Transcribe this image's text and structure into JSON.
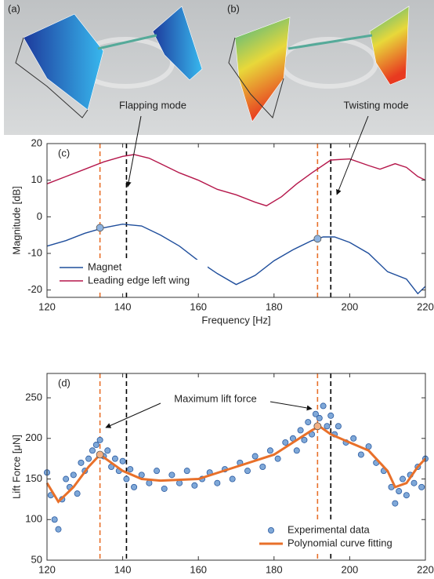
{
  "photo": {
    "labels": [
      "(a)",
      "(b)"
    ]
  },
  "chart_data": [
    {
      "type": "line",
      "panel": "(c)",
      "x_label": "Frequency [Hz]",
      "y_label": "Magnitude [dB]",
      "annotations": [
        "Flapping mode",
        "Twisting mode"
      ],
      "xlim": [
        120,
        220
      ],
      "ylim": [
        -22,
        20
      ],
      "xticks": [
        120,
        140,
        160,
        180,
        200,
        220
      ],
      "yticks": [
        -20,
        -10,
        0,
        10,
        20
      ],
      "legend": "lower left",
      "vlines": {
        "x": [
          134,
          141,
          191.5,
          195
        ],
        "colors": [
          "#e8702a",
          "#000000",
          "#e8702a",
          "#000000"
        ]
      },
      "highlights": {
        "x": [
          134,
          191.5
        ],
        "values": [
          -3,
          -6
        ],
        "color": "#8fb4e0"
      },
      "series": [
        {
          "name": "Magnet",
          "color": "#1f4e9c",
          "kind": "line",
          "x": [
            120,
            125,
            130,
            135,
            140,
            145,
            150,
            155,
            160,
            165,
            170,
            175,
            180,
            185,
            190,
            193,
            196,
            200,
            205,
            210,
            215,
            218,
            220
          ],
          "values": [
            -8,
            -6.5,
            -4.5,
            -3,
            -2,
            -2.5,
            -5,
            -8,
            -12,
            -15.5,
            -18.5,
            -16,
            -12,
            -9,
            -6.5,
            -5.5,
            -5.5,
            -7,
            -10,
            -15,
            -17,
            -21,
            -19
          ]
        },
        {
          "name": "Leading edge left wing",
          "color": "#b5174b",
          "kind": "line",
          "x": [
            120,
            125,
            130,
            135,
            140,
            143,
            147,
            150,
            155,
            160,
            165,
            170,
            175,
            178,
            182,
            186,
            190,
            195,
            200,
            205,
            208,
            212,
            215,
            218,
            220
          ],
          "values": [
            9,
            11,
            13,
            15,
            16.5,
            17,
            16,
            14.5,
            12,
            10,
            7.5,
            6,
            4,
            3,
            5.5,
            9,
            12,
            15.5,
            15.8,
            14,
            13,
            14.5,
            13.5,
            11,
            10
          ]
        }
      ]
    },
    {
      "type": "scatter",
      "panel": "(d)",
      "x_label": "Frequency [Hz]",
      "y_label": "Lift Force [μN]",
      "annotations": [
        "Maximum lift force"
      ],
      "xlim": [
        120,
        220
      ],
      "ylim": [
        50,
        280
      ],
      "xticks": [
        120,
        140,
        160,
        180,
        200,
        220
      ],
      "yticks": [
        50,
        100,
        150,
        200,
        250
      ],
      "legend": "lower right",
      "vlines": {
        "x": [
          134,
          141,
          191.5,
          195
        ],
        "colors": [
          "#e8702a",
          "#000000",
          "#e8702a",
          "#000000"
        ]
      },
      "highlights": {
        "x": [
          134,
          191.5
        ],
        "values": [
          180,
          215
        ],
        "color": "#f4b183"
      },
      "series": [
        {
          "name": "Experimental data",
          "color": "#7fa8d8",
          "kind": "markers",
          "x": [
            120,
            121,
            122,
            123,
            124,
            125,
            126,
            127,
            128,
            129,
            130,
            131,
            132,
            133,
            134,
            135,
            136,
            137,
            138,
            139,
            140,
            141,
            142,
            143,
            145,
            147,
            149,
            151,
            153,
            155,
            157,
            159,
            161,
            163,
            165,
            167,
            169,
            171,
            173,
            175,
            177,
            179,
            181,
            183,
            185,
            186,
            187,
            188,
            189,
            190,
            191,
            192,
            193,
            194,
            195,
            196,
            197,
            199,
            201,
            203,
            205,
            207,
            209,
            211,
            212,
            213,
            214,
            215,
            216,
            217,
            218,
            219,
            220
          ],
          "values": [
            158,
            130,
            100,
            88,
            125,
            150,
            140,
            155,
            132,
            170,
            160,
            175,
            185,
            192,
            198,
            178,
            185,
            165,
            175,
            160,
            172,
            150,
            162,
            140,
            155,
            145,
            160,
            138,
            155,
            145,
            160,
            142,
            150,
            158,
            145,
            162,
            150,
            170,
            160,
            178,
            165,
            185,
            175,
            195,
            200,
            185,
            210,
            198,
            220,
            205,
            230,
            225,
            240,
            215,
            228,
            205,
            215,
            195,
            200,
            180,
            190,
            170,
            160,
            140,
            120,
            135,
            150,
            130,
            155,
            145,
            165,
            140,
            175
          ]
        },
        {
          "name": "Polynomial curve fitting",
          "color": "#e8702a",
          "kind": "line",
          "x": [
            120,
            123,
            127,
            131,
            134,
            137,
            140,
            145,
            150,
            160,
            170,
            180,
            185,
            190,
            192,
            195,
            200,
            205,
            210,
            212,
            215,
            218,
            220
          ],
          "values": [
            145,
            122,
            140,
            165,
            180,
            170,
            160,
            150,
            148,
            150,
            165,
            180,
            195,
            210,
            215,
            205,
            195,
            185,
            160,
            140,
            145,
            165,
            175
          ]
        }
      ]
    }
  ]
}
